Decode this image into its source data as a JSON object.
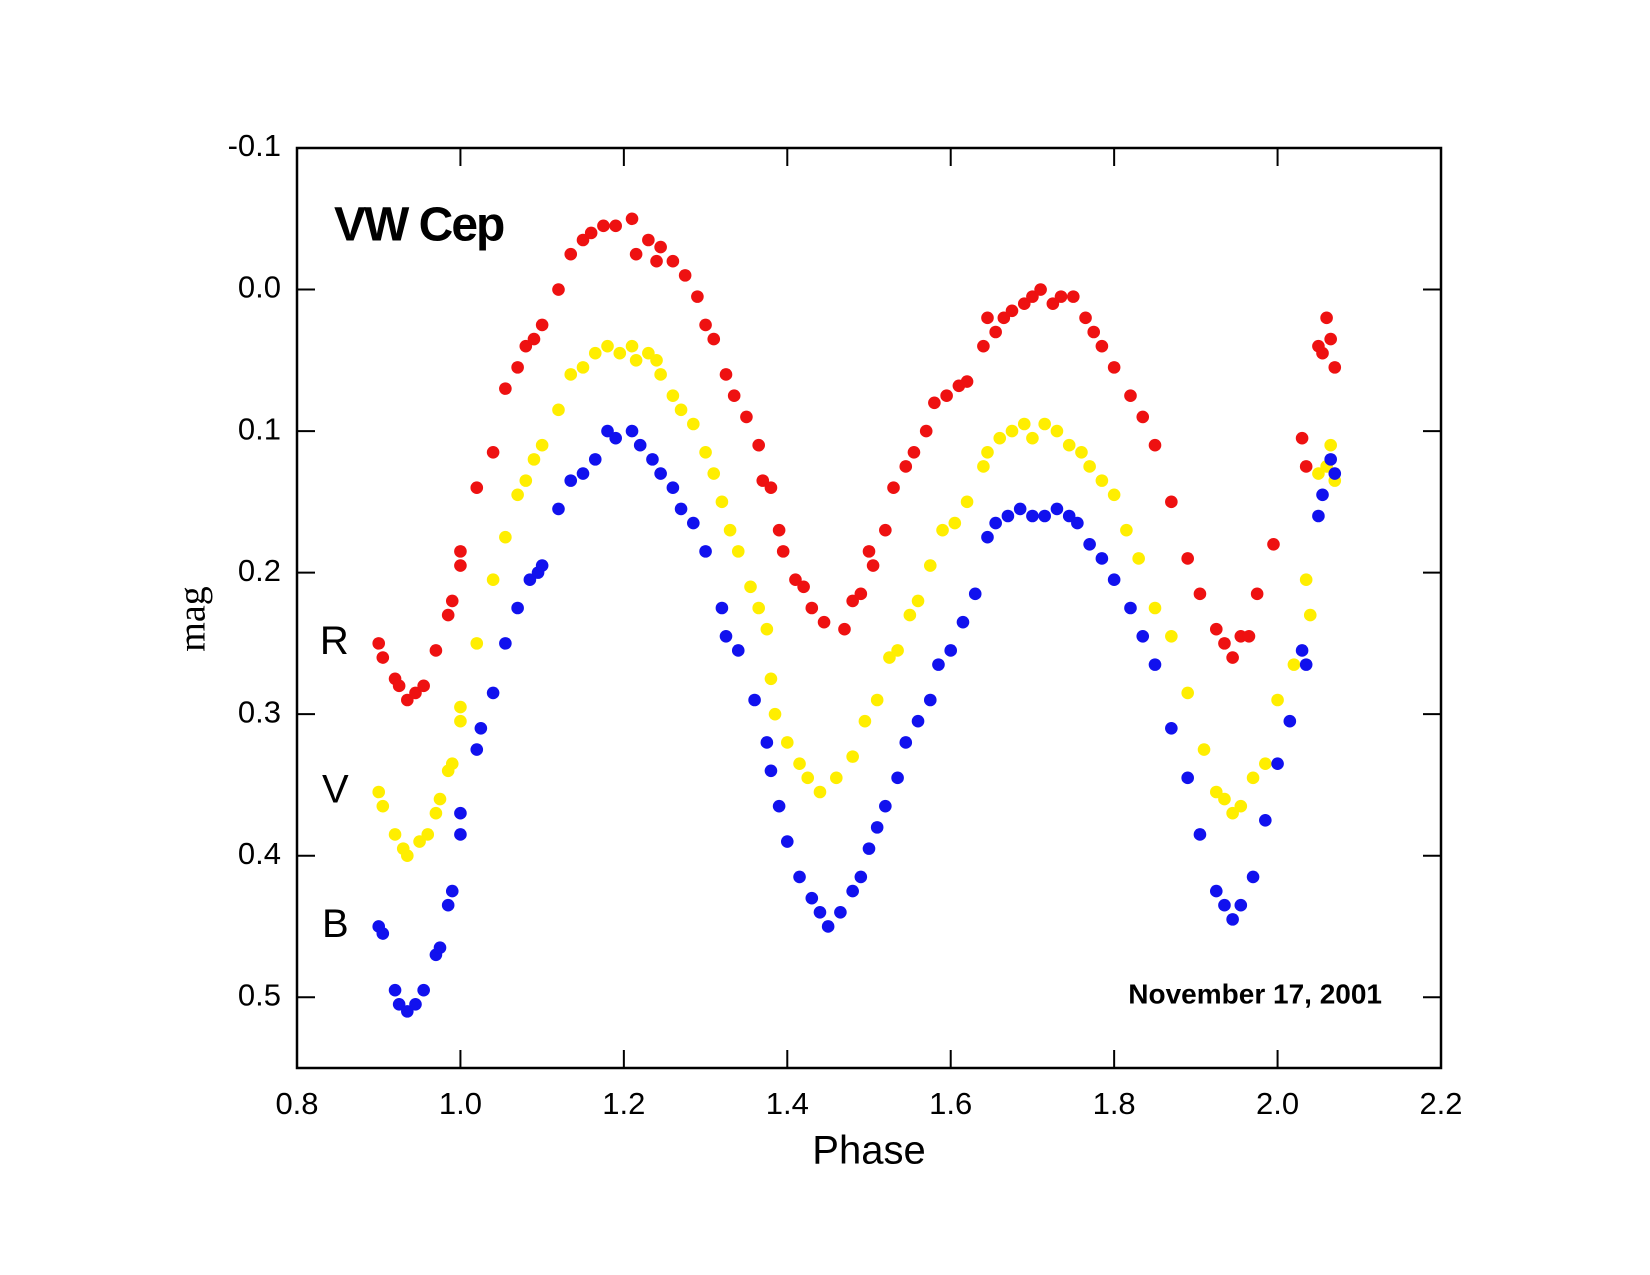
{
  "chart_data": {
    "type": "scatter",
    "title": "VW Cep",
    "annotation": "November 17, 2001",
    "x_label": "Phase",
    "y_label": "mag",
    "xlim": [
      0.8,
      2.2
    ],
    "xticks": [
      0.8,
      {
        "value": 1.0,
        "label": "1.0"
      },
      1.2,
      1.4,
      1.6,
      1.8,
      {
        "value": 2.0,
        "label": "2.0"
      },
      2.2
    ],
    "ylim": [
      -0.1,
      0.55
    ],
    "yticks": [
      -0.1,
      {
        "value": 0.0,
        "label": "0.0"
      },
      0.1,
      0.2,
      0.3,
      0.4,
      0.5
    ],
    "invert_y": true,
    "series": [
      {
        "name": "R",
        "color": "#ee1111",
        "x": [
          0.9,
          0.905,
          0.92,
          0.925,
          0.935,
          0.945,
          0.955,
          0.97,
          0.985,
          0.99,
          1.0,
          1.0,
          1.02,
          1.04,
          1.055,
          1.07,
          1.08,
          1.09,
          1.1,
          1.12,
          1.135,
          1.15,
          1.16,
          1.175,
          1.19,
          1.21,
          1.215,
          1.23,
          1.24,
          1.245,
          1.26,
          1.275,
          1.29,
          1.3,
          1.31,
          1.325,
          1.335,
          1.35,
          1.365,
          1.37,
          1.38,
          1.39,
          1.395,
          1.41,
          1.42,
          1.43,
          1.445,
          1.47,
          1.48,
          1.49,
          1.5,
          1.505,
          1.52,
          1.53,
          1.545,
          1.555,
          1.57,
          1.58,
          1.595,
          1.61,
          1.62,
          1.64,
          1.645,
          1.655,
          1.665,
          1.675,
          1.69,
          1.7,
          1.71,
          1.725,
          1.735,
          1.75,
          1.765,
          1.775,
          1.785,
          1.8,
          1.82,
          1.835,
          1.85,
          1.87,
          1.89,
          1.905,
          1.925,
          1.935,
          1.945,
          1.955,
          1.965,
          1.975,
          1.995,
          2.03,
          2.035,
          2.05,
          2.055,
          2.06,
          2.065,
          2.07
        ],
        "values": [
          0.25,
          0.26,
          0.275,
          0.28,
          0.29,
          0.285,
          0.28,
          0.255,
          0.23,
          0.22,
          0.195,
          0.185,
          0.14,
          0.115,
          0.07,
          0.055,
          0.04,
          0.035,
          0.025,
          0.0,
          -0.025,
          -0.035,
          -0.04,
          -0.045,
          -0.045,
          -0.05,
          -0.025,
          -0.035,
          -0.02,
          -0.03,
          -0.02,
          -0.01,
          0.005,
          0.025,
          0.035,
          0.06,
          0.075,
          0.09,
          0.11,
          0.135,
          0.14,
          0.17,
          0.185,
          0.205,
          0.21,
          0.225,
          0.235,
          0.24,
          0.22,
          0.215,
          0.185,
          0.195,
          0.17,
          0.14,
          0.125,
          0.115,
          0.1,
          0.08,
          0.075,
          0.068,
          0.065,
          0.04,
          0.02,
          0.03,
          0.02,
          0.015,
          0.01,
          0.005,
          0.0,
          0.01,
          0.005,
          0.005,
          0.02,
          0.03,
          0.04,
          0.055,
          0.075,
          0.09,
          0.11,
          0.15,
          0.19,
          0.215,
          0.24,
          0.25,
          0.26,
          0.245,
          0.245,
          0.215,
          0.18,
          0.105,
          0.125,
          0.04,
          0.045,
          0.02,
          0.035,
          0.055
        ]
      },
      {
        "name": "V",
        "color": "#ffee00",
        "x": [
          0.9,
          0.905,
          0.92,
          0.93,
          0.935,
          0.95,
          0.96,
          0.97,
          0.975,
          0.985,
          0.99,
          1.0,
          1.0,
          1.02,
          1.04,
          1.055,
          1.07,
          1.08,
          1.09,
          1.1,
          1.12,
          1.135,
          1.15,
          1.165,
          1.18,
          1.195,
          1.21,
          1.215,
          1.23,
          1.24,
          1.245,
          1.26,
          1.27,
          1.285,
          1.3,
          1.31,
          1.32,
          1.33,
          1.34,
          1.355,
          1.365,
          1.375,
          1.38,
          1.385,
          1.4,
          1.415,
          1.425,
          1.44,
          1.46,
          1.48,
          1.495,
          1.51,
          1.525,
          1.535,
          1.55,
          1.56,
          1.575,
          1.59,
          1.605,
          1.62,
          1.64,
          1.645,
          1.66,
          1.675,
          1.69,
          1.7,
          1.715,
          1.73,
          1.745,
          1.76,
          1.77,
          1.785,
          1.8,
          1.815,
          1.83,
          1.85,
          1.87,
          1.89,
          1.91,
          1.925,
          1.935,
          1.945,
          1.955,
          1.97,
          1.985,
          2.0,
          2.02,
          2.035,
          2.04,
          2.05,
          2.06,
          2.065,
          2.07
        ],
        "values": [
          0.355,
          0.365,
          0.385,
          0.395,
          0.4,
          0.39,
          0.385,
          0.37,
          0.36,
          0.34,
          0.335,
          0.305,
          0.295,
          0.25,
          0.205,
          0.175,
          0.145,
          0.135,
          0.12,
          0.11,
          0.085,
          0.06,
          0.055,
          0.045,
          0.04,
          0.045,
          0.04,
          0.05,
          0.045,
          0.05,
          0.06,
          0.075,
          0.085,
          0.095,
          0.115,
          0.13,
          0.15,
          0.17,
          0.185,
          0.21,
          0.225,
          0.24,
          0.275,
          0.3,
          0.32,
          0.335,
          0.345,
          0.355,
          0.345,
          0.33,
          0.305,
          0.29,
          0.26,
          0.255,
          0.23,
          0.22,
          0.195,
          0.17,
          0.165,
          0.15,
          0.125,
          0.115,
          0.105,
          0.1,
          0.095,
          0.105,
          0.095,
          0.1,
          0.11,
          0.115,
          0.125,
          0.135,
          0.145,
          0.17,
          0.19,
          0.225,
          0.245,
          0.285,
          0.325,
          0.355,
          0.36,
          0.37,
          0.365,
          0.345,
          0.335,
          0.29,
          0.265,
          0.205,
          0.23,
          0.13,
          0.125,
          0.11,
          0.135
        ]
      },
      {
        "name": "B",
        "color": "#1111ee",
        "x": [
          0.9,
          0.905,
          0.92,
          0.925,
          0.935,
          0.945,
          0.955,
          0.97,
          0.975,
          0.985,
          0.99,
          1.0,
          1.0,
          1.02,
          1.025,
          1.04,
          1.055,
          1.07,
          1.085,
          1.095,
          1.1,
          1.12,
          1.135,
          1.15,
          1.165,
          1.18,
          1.19,
          1.21,
          1.22,
          1.235,
          1.245,
          1.26,
          1.27,
          1.285,
          1.3,
          1.32,
          1.325,
          1.34,
          1.36,
          1.375,
          1.38,
          1.39,
          1.4,
          1.415,
          1.43,
          1.44,
          1.45,
          1.465,
          1.48,
          1.49,
          1.5,
          1.51,
          1.52,
          1.535,
          1.545,
          1.56,
          1.575,
          1.585,
          1.6,
          1.615,
          1.63,
          1.645,
          1.655,
          1.67,
          1.685,
          1.7,
          1.715,
          1.73,
          1.745,
          1.755,
          1.77,
          1.785,
          1.8,
          1.82,
          1.835,
          1.85,
          1.87,
          1.89,
          1.905,
          1.925,
          1.935,
          1.945,
          1.955,
          1.97,
          1.985,
          2.0,
          2.015,
          2.03,
          2.035,
          2.05,
          2.055,
          2.065,
          2.07
        ],
        "values": [
          0.45,
          0.455,
          0.495,
          0.505,
          0.51,
          0.505,
          0.495,
          0.47,
          0.465,
          0.435,
          0.425,
          0.385,
          0.37,
          0.325,
          0.31,
          0.285,
          0.25,
          0.225,
          0.205,
          0.2,
          0.195,
          0.155,
          0.135,
          0.13,
          0.12,
          0.1,
          0.105,
          0.1,
          0.11,
          0.12,
          0.13,
          0.14,
          0.155,
          0.165,
          0.185,
          0.225,
          0.245,
          0.255,
          0.29,
          0.32,
          0.34,
          0.365,
          0.39,
          0.415,
          0.43,
          0.44,
          0.45,
          0.44,
          0.425,
          0.415,
          0.395,
          0.38,
          0.365,
          0.345,
          0.32,
          0.305,
          0.29,
          0.265,
          0.255,
          0.235,
          0.215,
          0.175,
          0.165,
          0.16,
          0.155,
          0.16,
          0.16,
          0.155,
          0.16,
          0.165,
          0.18,
          0.19,
          0.205,
          0.225,
          0.245,
          0.265,
          0.31,
          0.345,
          0.385,
          0.425,
          0.435,
          0.445,
          0.435,
          0.415,
          0.375,
          0.335,
          0.305,
          0.255,
          0.265,
          0.16,
          0.145,
          0.12,
          0.13
        ]
      }
    ]
  }
}
